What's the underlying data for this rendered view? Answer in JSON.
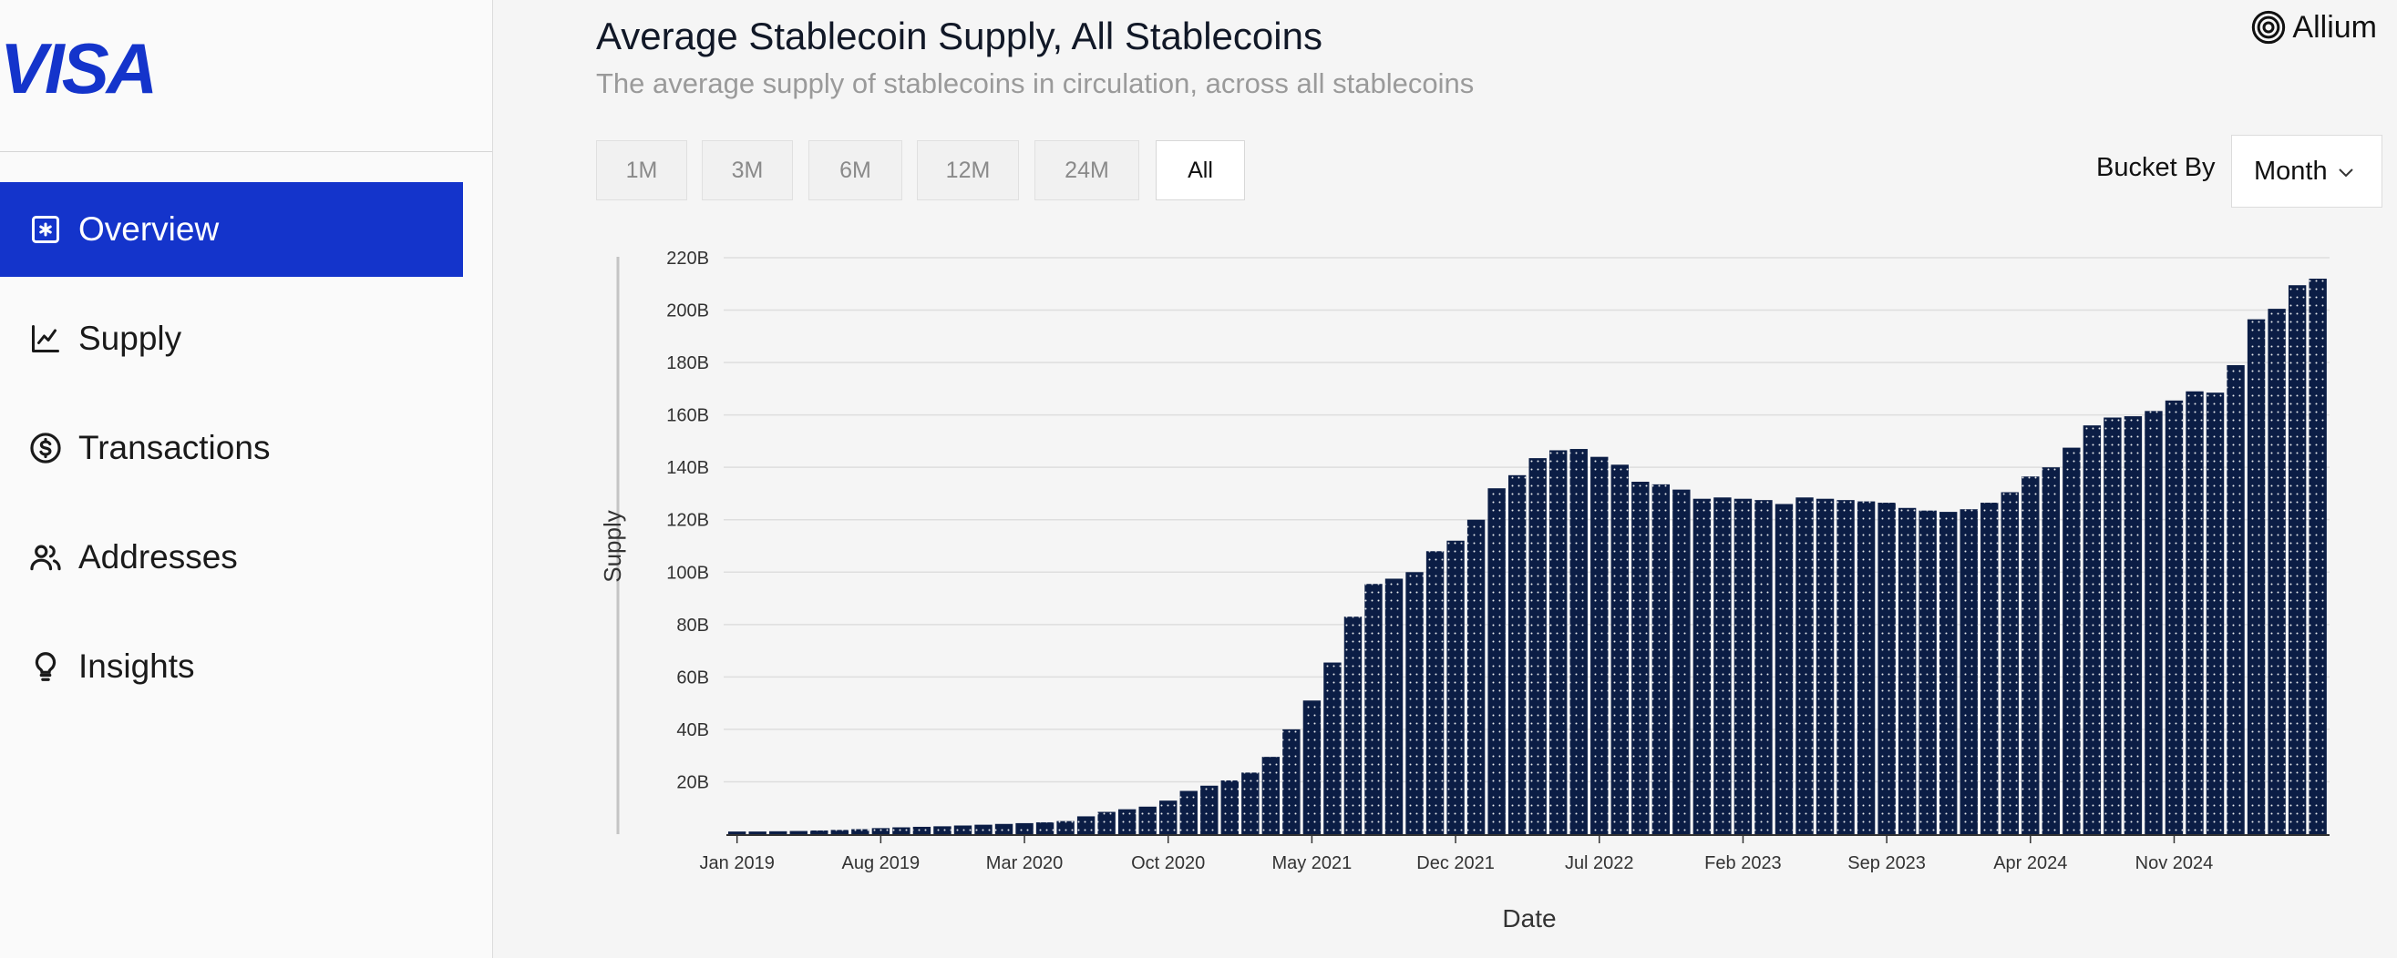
{
  "sidebar": {
    "logo_text": "VISA",
    "brand_color": "#1434cb",
    "items": [
      {
        "label": "Overview",
        "icon": "overview-icon",
        "active": true
      },
      {
        "label": "Supply",
        "icon": "line-chart-icon",
        "active": false
      },
      {
        "label": "Transactions",
        "icon": "dollar-coin-icon",
        "active": false
      },
      {
        "label": "Addresses",
        "icon": "users-icon",
        "active": false
      },
      {
        "label": "Insights",
        "icon": "lightbulb-icon",
        "active": false
      }
    ]
  },
  "header": {
    "title": "Average Stablecoin Supply, All Stablecoins",
    "subtitle": "The average supply of stablecoins in circulation, across all stablecoins",
    "brand": "Allium"
  },
  "controls": {
    "ranges": [
      "1M",
      "3M",
      "6M",
      "12M",
      "24M",
      "All"
    ],
    "active_range": "All",
    "bucket_label": "Bucket By",
    "bucket_value": "Month"
  },
  "chart_data": {
    "type": "bar",
    "title": "Average Stablecoin Supply, All Stablecoins",
    "xlabel": "Date",
    "ylabel": "Supply",
    "ylim": [
      0,
      220
    ],
    "y_unit": "B",
    "yticks": [
      "20B",
      "40B",
      "60B",
      "80B",
      "100B",
      "120B",
      "140B",
      "160B",
      "180B",
      "200B",
      "220B"
    ],
    "xtick_labels": [
      "Jan 2019",
      "Aug 2019",
      "Mar 2020",
      "Oct 2020",
      "May 2021",
      "Dec 2021",
      "Jul 2022",
      "Feb 2023",
      "Sep 2023",
      "Apr 2024",
      "Nov 2024"
    ],
    "xtick_every": 7,
    "grid": true,
    "bar_color": "#0b1d45",
    "start_month": "Jan 2019",
    "values": [
      1.0,
      1.0,
      1.1,
      1.2,
      1.4,
      1.6,
      1.9,
      2.3,
      2.6,
      2.8,
      3.0,
      3.3,
      3.6,
      3.9,
      4.2,
      4.5,
      5.0,
      6.8,
      8.5,
      9.5,
      10.5,
      12.8,
      16.5,
      18.5,
      20.5,
      23.5,
      29.5,
      40.0,
      51.0,
      65.5,
      83.0,
      95.5,
      97.5,
      100.0,
      108.0,
      112.0,
      120.0,
      132.0,
      137.0,
      143.5,
      146.5,
      147.0,
      144.0,
      141.0,
      134.5,
      133.5,
      131.5,
      128.0,
      128.5,
      128.0,
      127.5,
      126.0,
      128.5,
      128.0,
      127.5,
      127.0,
      126.5,
      124.5,
      123.5,
      123.0,
      124.0,
      126.5,
      130.5,
      136.5,
      140.0,
      147.5,
      156.0,
      159.0,
      159.5,
      161.5,
      165.5,
      169.0,
      168.5,
      179.0,
      196.5,
      200.5,
      209.5,
      212.0
    ]
  }
}
